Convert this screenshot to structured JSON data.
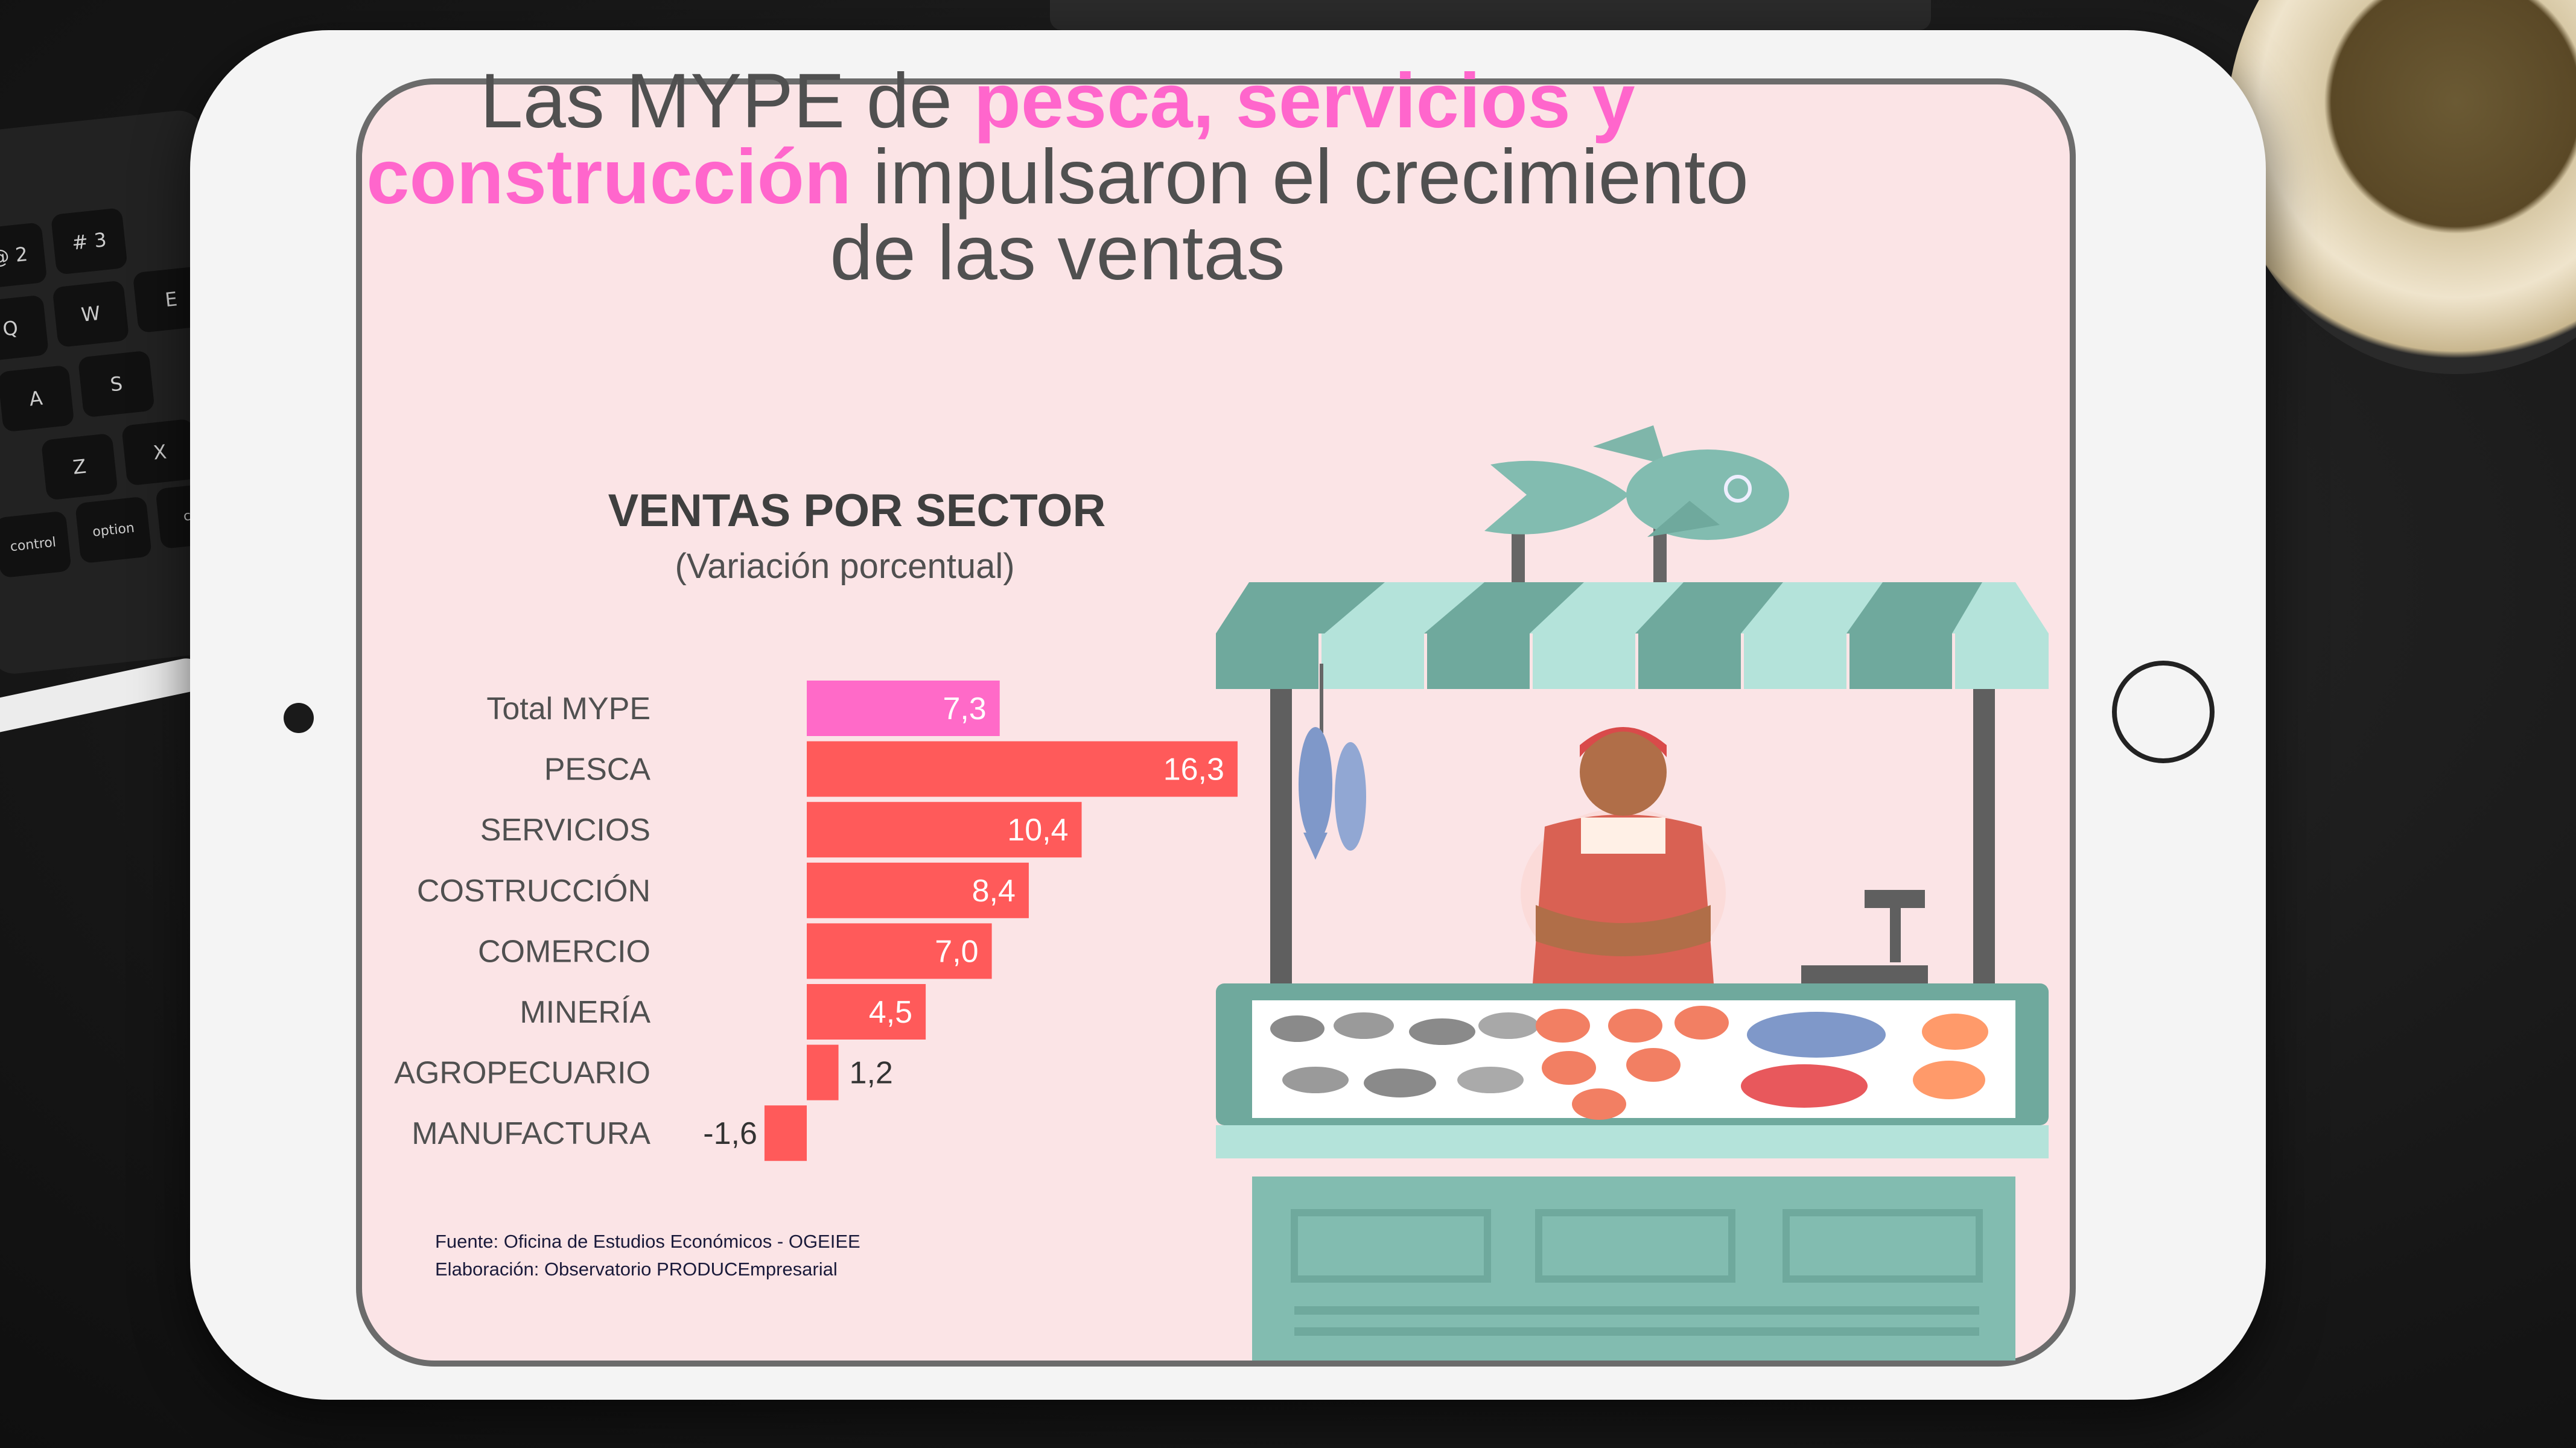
{
  "headline": {
    "part1": "Las MYPE de ",
    "highlight1": "pesca, servicios y",
    "highlight2": "construcción",
    "part2": " impulsaron el crecimiento",
    "part3": "de las ventas"
  },
  "source": {
    "line1": "Fuente: Oficina de Estudios Económicos - OGEIEE",
    "line2": "Elaboración: Observatorio PRODUCEmpresarial"
  },
  "keyboard_keys": [
    "@\n2",
    "#\n3",
    "Q",
    "W",
    "E",
    "A",
    "S",
    "Z",
    "X",
    "control",
    "option",
    "cor"
  ],
  "colors": {
    "total_bar": "#ff6ac8",
    "sector_bar": "#ff5a5a",
    "screen_bg": "#fbe4e6",
    "highlight_text": "#ff66cc",
    "stall_teal": "#6fa99d",
    "stall_light": "#a9dcd2"
  },
  "chart_data": {
    "type": "bar",
    "orientation": "horizontal",
    "title": "VENTAS POR SECTOR",
    "subtitle": "(Variación porcentual)",
    "categories": [
      "Total MYPE",
      "PESCA",
      "SERVICIOS",
      "COSTRUCCIÓN",
      "COMERCIO",
      "MINERÍA",
      "AGROPECUARIO",
      "MANUFACTURA"
    ],
    "values": [
      7.3,
      16.3,
      10.4,
      8.4,
      7.0,
      4.5,
      1.2,
      -1.6
    ],
    "value_labels": [
      "7,3",
      "16,3",
      "10,4",
      "8,4",
      "7,0",
      "4,5",
      "1,2",
      "-1,6"
    ],
    "highlight_category": "Total MYPE",
    "xlabel": "",
    "ylabel": "",
    "grid": false
  }
}
